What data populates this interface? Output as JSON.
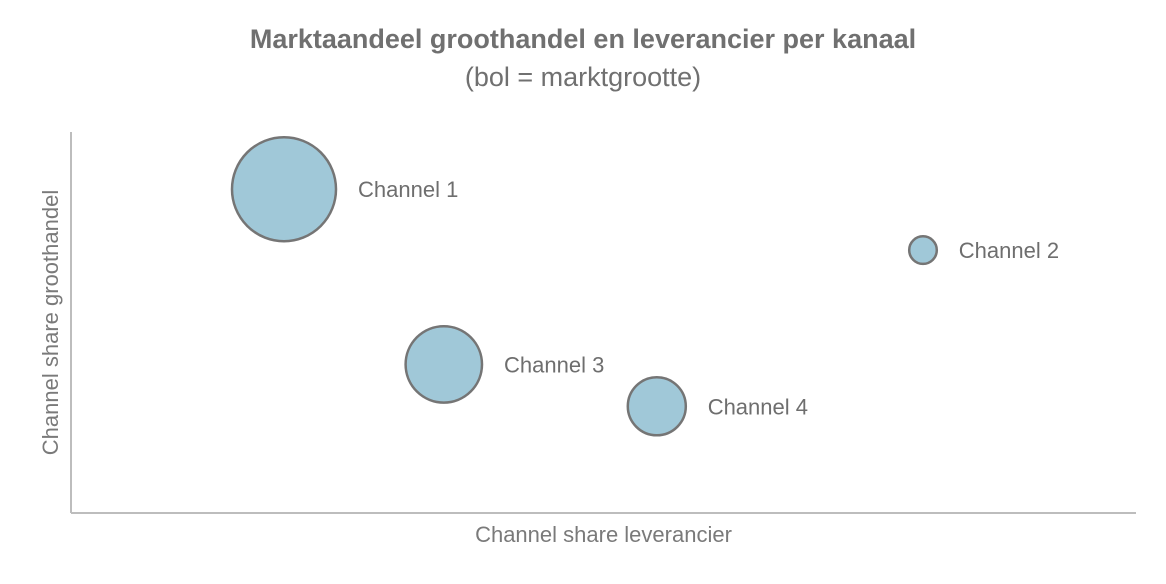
{
  "chart_data": {
    "type": "scatter",
    "subtype": "bubble",
    "title": "Marktaandeel  groothandel en leverancier per kanaal",
    "subtitle": "(bol = marktgrootte)",
    "xlabel": "Channel share leverancier",
    "ylabel": "Channel share groothandel",
    "xlim": [
      0,
      100
    ],
    "ylim": [
      0,
      100
    ],
    "grid": false,
    "legend": "none",
    "bubble_color": "#a0c8d8",
    "bubble_border_color": "#757575",
    "series": [
      {
        "points": [
          {
            "label": "Channel 1",
            "x": 20,
            "y": 85,
            "size": 100
          },
          {
            "label": "Channel 2",
            "x": 80,
            "y": 69,
            "size": 7
          },
          {
            "label": "Channel 3",
            "x": 35,
            "y": 39,
            "size": 54
          },
          {
            "label": "Channel 4",
            "x": 55,
            "y": 28,
            "size": 31
          }
        ]
      }
    ]
  }
}
